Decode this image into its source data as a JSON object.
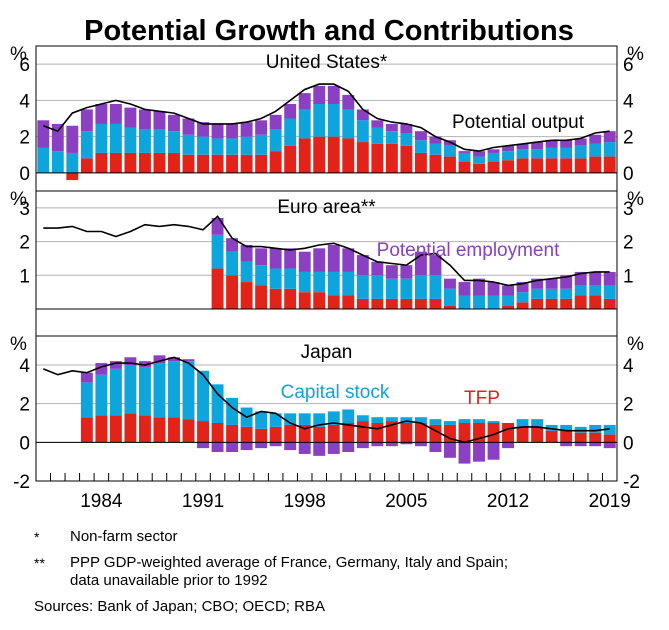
{
  "title": "Potential Growth and Contributions",
  "unit_label": "%",
  "colors": {
    "tfp": "#e2231a",
    "capital": "#0ea5dd",
    "employment": "#8b3fc2",
    "line": "#000000",
    "grid": "#b3b3b3"
  },
  "x_axis": {
    "tick_labels": [
      "1984",
      "1991",
      "1998",
      "2005",
      "2012",
      "2019"
    ],
    "tick_years": [
      1984,
      1991,
      1998,
      2005,
      2012,
      2019
    ],
    "start_year": 1980,
    "end_year": 2020
  },
  "chart_data": [
    {
      "type": "bar",
      "title": "United States*",
      "ylim": [
        -1,
        7
      ],
      "yticks": [
        0,
        2,
        4,
        6
      ],
      "annotations": [
        "Potential output"
      ],
      "x": [
        1980,
        1981,
        1982,
        1983,
        1984,
        1985,
        1986,
        1987,
        1988,
        1989,
        1990,
        1991,
        1992,
        1993,
        1994,
        1995,
        1996,
        1997,
        1998,
        1999,
        2000,
        2001,
        2002,
        2003,
        2004,
        2005,
        2006,
        2007,
        2008,
        2009,
        2010,
        2011,
        2012,
        2013,
        2014,
        2015,
        2016,
        2017,
        2018,
        2019
      ],
      "series": [
        {
          "name": "TFP",
          "values": [
            0,
            0,
            -0.4,
            0.8,
            1.1,
            1.1,
            1.1,
            1.1,
            1.1,
            1.1,
            1.0,
            1.0,
            1.0,
            1.0,
            1.0,
            1.0,
            1.2,
            1.5,
            1.9,
            2.0,
            2.0,
            1.9,
            1.7,
            1.6,
            1.6,
            1.5,
            1.1,
            1.0,
            0.9,
            0.6,
            0.5,
            0.6,
            0.7,
            0.8,
            0.8,
            0.8,
            0.8,
            0.8,
            0.9,
            0.9
          ]
        },
        {
          "name": "Capital stock",
          "values": [
            1.4,
            1.2,
            1.1,
            1.5,
            1.6,
            1.6,
            1.4,
            1.3,
            1.3,
            1.2,
            1.1,
            1.0,
            0.9,
            0.9,
            1.0,
            1.1,
            1.2,
            1.5,
            1.6,
            1.8,
            1.8,
            1.6,
            1.2,
            0.9,
            0.7,
            0.7,
            0.7,
            0.6,
            0.6,
            0.5,
            0.4,
            0.5,
            0.5,
            0.5,
            0.5,
            0.6,
            0.6,
            0.7,
            0.7,
            0.8
          ]
        },
        {
          "name": "Potential employment",
          "values": [
            1.5,
            1.5,
            1.5,
            1.2,
            1.1,
            1.1,
            1.1,
            1.1,
            1.0,
            0.9,
            0.9,
            0.8,
            0.8,
            0.8,
            0.8,
            0.8,
            0.8,
            0.8,
            0.9,
            1.0,
            1.0,
            0.8,
            0.6,
            0.4,
            0.4,
            0.5,
            0.5,
            0.4,
            0.3,
            0.1,
            0.3,
            0.2,
            0.3,
            0.3,
            0.4,
            0.4,
            0.4,
            0.4,
            0.5,
            0.6
          ]
        }
      ],
      "line": {
        "name": "Potential output",
        "values": [
          2.6,
          2.3,
          3.3,
          3.6,
          3.8,
          4.0,
          3.8,
          3.5,
          3.4,
          3.3,
          3.0,
          2.7,
          2.7,
          2.7,
          2.8,
          3.0,
          3.4,
          4.0,
          4.6,
          4.9,
          4.9,
          4.5,
          3.5,
          3.0,
          2.8,
          2.7,
          2.5,
          2.0,
          1.7,
          1.3,
          1.2,
          1.4,
          1.5,
          1.6,
          1.7,
          1.8,
          1.8,
          1.9,
          2.2,
          2.3
        ]
      }
    },
    {
      "type": "bar",
      "title": "Euro area**",
      "ylim": [
        -0.8,
        3.5
      ],
      "yticks": [
        1,
        2,
        3
      ],
      "annotations": [
        "Potential employment"
      ],
      "x": [
        1992,
        1993,
        1994,
        1995,
        1996,
        1997,
        1998,
        1999,
        2000,
        2001,
        2002,
        2003,
        2004,
        2005,
        2006,
        2007,
        2008,
        2009,
        2010,
        2011,
        2012,
        2013,
        2014,
        2015,
        2016,
        2017,
        2018,
        2019
      ],
      "series": [
        {
          "name": "TFP",
          "values": [
            1.2,
            1.0,
            0.8,
            0.7,
            0.6,
            0.6,
            0.5,
            0.5,
            0.4,
            0.4,
            0.3,
            0.3,
            0.3,
            0.3,
            0.3,
            0.3,
            0.1,
            0.0,
            0.0,
            0.0,
            0.1,
            0.2,
            0.3,
            0.3,
            0.3,
            0.4,
            0.4,
            0.3
          ]
        },
        {
          "name": "Capital stock",
          "values": [
            1.0,
            0.7,
            0.6,
            0.6,
            0.6,
            0.6,
            0.6,
            0.6,
            0.7,
            0.7,
            0.7,
            0.7,
            0.6,
            0.6,
            0.7,
            0.7,
            0.5,
            0.4,
            0.4,
            0.4,
            0.3,
            0.3,
            0.3,
            0.3,
            0.3,
            0.3,
            0.3,
            0.4
          ]
        },
        {
          "name": "Potential employment",
          "values": [
            0.5,
            0.4,
            0.5,
            0.5,
            0.6,
            0.6,
            0.6,
            0.7,
            0.8,
            0.7,
            0.6,
            0.4,
            0.4,
            0.4,
            0.7,
            0.6,
            0.3,
            0.4,
            0.5,
            0.4,
            0.3,
            0.3,
            0.3,
            0.3,
            0.4,
            0.4,
            0.4,
            0.4
          ]
        }
      ],
      "line": {
        "name": "Potential output",
        "x": [
          1980,
          1981,
          1982,
          1983,
          1984,
          1985,
          1986,
          1987,
          1988,
          1989,
          1990,
          1991,
          1992,
          1993,
          1994,
          1995,
          1996,
          1997,
          1998,
          1999,
          2000,
          2001,
          2002,
          2003,
          2004,
          2005,
          2006,
          2007,
          2008,
          2009,
          2010,
          2011,
          2012,
          2013,
          2014,
          2015,
          2016,
          2017,
          2018,
          2019
        ],
        "values": [
          2.4,
          2.4,
          2.45,
          2.3,
          2.3,
          2.15,
          2.3,
          2.5,
          2.45,
          2.5,
          2.45,
          2.35,
          2.75,
          2.1,
          1.85,
          1.85,
          1.8,
          1.75,
          1.8,
          1.9,
          1.95,
          1.8,
          1.6,
          1.4,
          1.35,
          1.3,
          1.6,
          1.65,
          1.3,
          0.85,
          0.85,
          0.8,
          0.7,
          0.75,
          0.85,
          0.9,
          0.95,
          1.05,
          1.1,
          1.1
        ]
      }
    },
    {
      "type": "bar",
      "title": "Japan",
      "ylim": [
        -2,
        5.5
      ],
      "yticks": [
        -2,
        0,
        2,
        4
      ],
      "annotations": [
        "Capital stock",
        "TFP"
      ],
      "x": [
        1983,
        1984,
        1985,
        1986,
        1987,
        1988,
        1989,
        1990,
        1991,
        1992,
        1993,
        1994,
        1995,
        1996,
        1997,
        1998,
        1999,
        2000,
        2001,
        2002,
        2003,
        2004,
        2005,
        2006,
        2007,
        2008,
        2009,
        2010,
        2011,
        2012,
        2013,
        2014,
        2015,
        2016,
        2017,
        2018,
        2019
      ],
      "series": [
        {
          "name": "TFP",
          "values": [
            1.3,
            1.4,
            1.4,
            1.5,
            1.4,
            1.3,
            1.3,
            1.2,
            1.1,
            1.0,
            0.9,
            0.8,
            0.7,
            0.8,
            0.9,
            0.9,
            0.8,
            0.9,
            1.0,
            1.1,
            1.0,
            1.1,
            1.0,
            1.0,
            0.9,
            0.9,
            1.0,
            1.0,
            1.0,
            1.0,
            0.8,
            0.8,
            0.6,
            0.6,
            0.5,
            0.5,
            0.4
          ]
        },
        {
          "name": "Capital stock",
          "values": [
            1.8,
            2.1,
            2.4,
            2.5,
            2.5,
            2.8,
            2.9,
            3.0,
            2.6,
            2.0,
            1.4,
            1.0,
            0.9,
            0.7,
            0.6,
            0.6,
            0.7,
            0.7,
            0.7,
            0.3,
            0.3,
            0.2,
            0.3,
            0.3,
            0.3,
            0.2,
            0.2,
            0.2,
            0.1,
            0.0,
            0.4,
            0.4,
            0.3,
            0.3,
            0.3,
            0.4,
            0.5
          ]
        },
        {
          "name": "Potential employment",
          "values": [
            0.5,
            0.6,
            0.4,
            0.4,
            0.3,
            0.4,
            0.2,
            0.1,
            -0.3,
            -0.5,
            -0.5,
            -0.4,
            -0.3,
            -0.2,
            -0.4,
            -0.6,
            -0.7,
            -0.6,
            -0.5,
            -0.3,
            -0.2,
            -0.2,
            -0.1,
            -0.2,
            -0.5,
            -0.8,
            -1.1,
            -1.0,
            -0.9,
            -0.3,
            0.0,
            0.0,
            0.0,
            -0.2,
            -0.2,
            -0.2,
            -0.3
          ]
        }
      ],
      "line": {
        "name": "Potential output",
        "x": [
          1980,
          1981,
          1982,
          1983,
          1984,
          1985,
          1986,
          1987,
          1988,
          1989,
          1990,
          1991,
          1992,
          1993,
          1994,
          1995,
          1996,
          1997,
          1998,
          1999,
          2000,
          2001,
          2002,
          2003,
          2004,
          2005,
          2006,
          2007,
          2008,
          2009,
          2010,
          2011,
          2012,
          2013,
          2014,
          2015,
          2016,
          2017,
          2018,
          2019
        ],
        "values": [
          3.8,
          3.5,
          3.7,
          3.6,
          3.9,
          4.1,
          4.1,
          4.0,
          4.2,
          4.4,
          4.1,
          3.5,
          2.5,
          1.8,
          1.3,
          1.6,
          1.5,
          1.0,
          0.7,
          0.9,
          1.0,
          0.9,
          0.8,
          0.7,
          0.9,
          1.1,
          1.0,
          0.6,
          0.2,
          0.0,
          0.2,
          0.4,
          0.7,
          0.8,
          0.8,
          0.7,
          0.6,
          0.6,
          0.6,
          0.7
        ]
      }
    }
  ],
  "notes": [
    {
      "mark": "*",
      "text": "Non-farm sector"
    },
    {
      "mark": "**",
      "text": "PPP GDP-weighted average of France, Germany, Italy and Spain;"
    },
    {
      "mark": "",
      "text": "data unavailable prior to 1992"
    }
  ],
  "sources": "Sources: Bank of Japan; CBO; OECD; RBA"
}
